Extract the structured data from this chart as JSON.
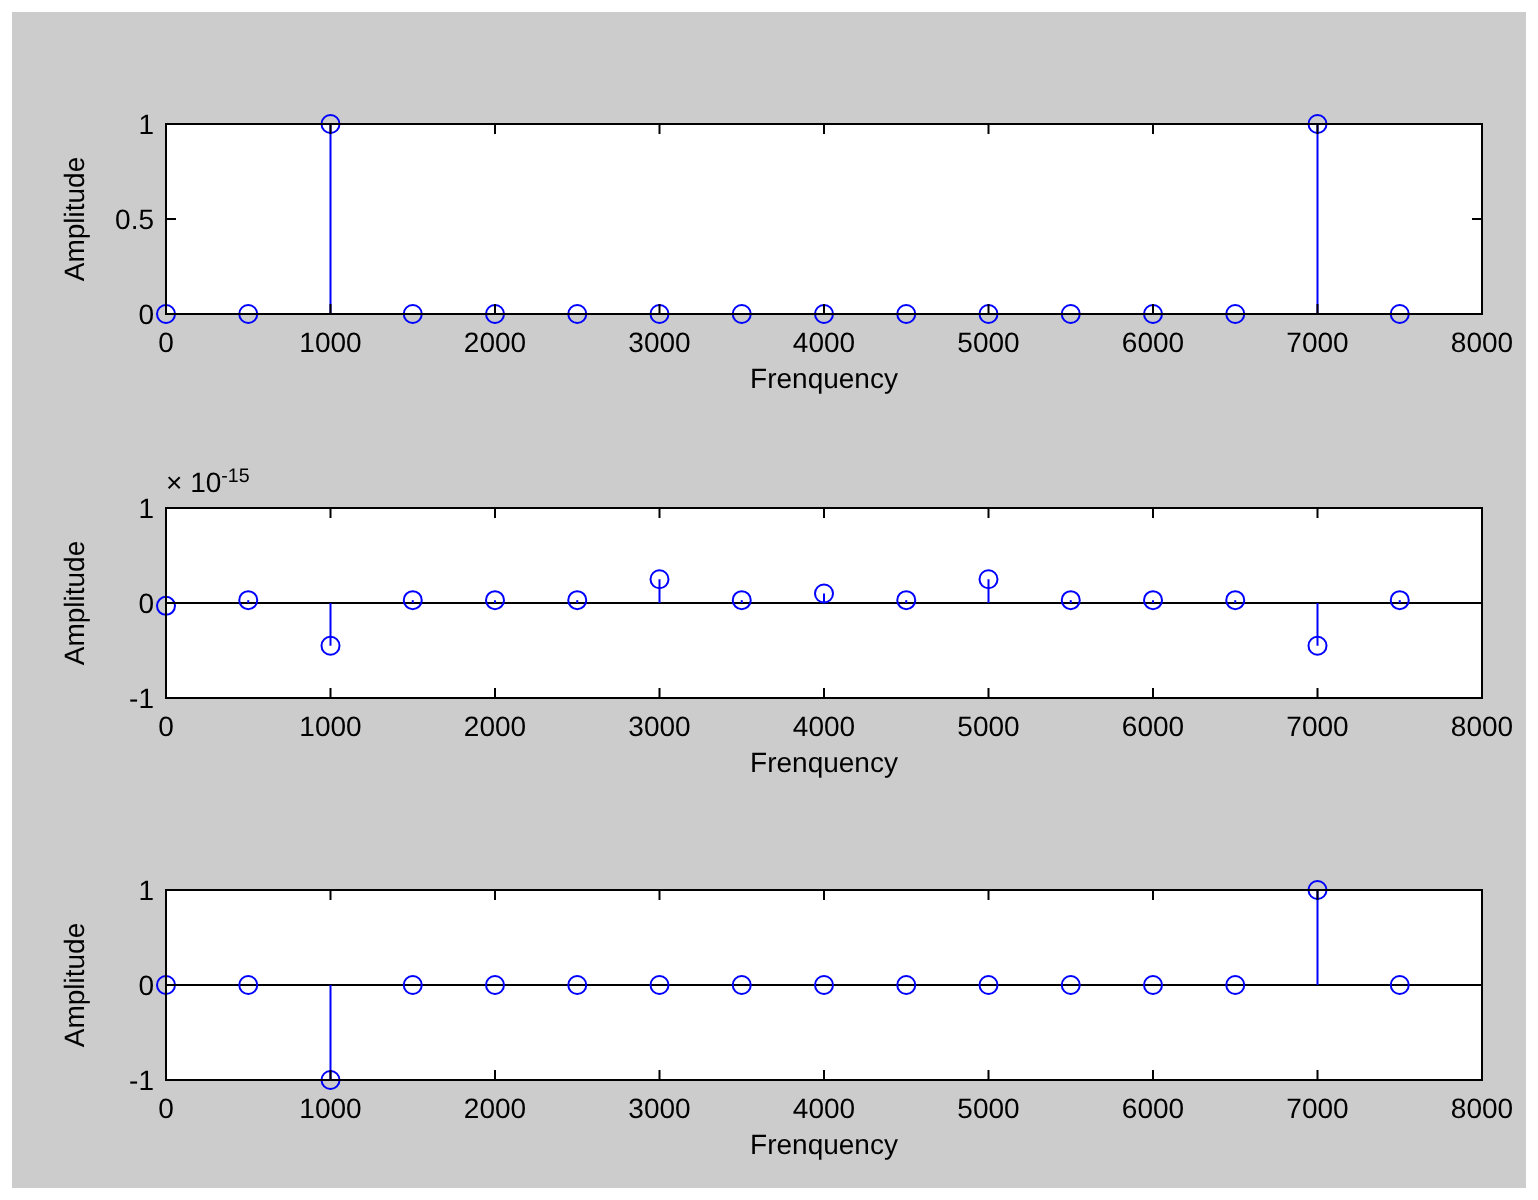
{
  "chart_data": [
    {
      "type": "lollipop",
      "x": [
        0,
        500,
        1000,
        1500,
        2000,
        2500,
        3000,
        3500,
        4000,
        4500,
        5000,
        5500,
        6000,
        6500,
        7000,
        7500
      ],
      "series": [
        {
          "color": "#0000ff",
          "values": [
            0,
            0,
            1,
            0,
            0,
            0,
            0,
            0,
            0,
            0,
            0,
            0,
            0,
            0,
            1,
            0
          ]
        }
      ],
      "xlim": [
        0,
        8000
      ],
      "xticks": [
        0,
        1000,
        2000,
        3000,
        4000,
        5000,
        6000,
        7000,
        8000
      ],
      "ylim": [
        0,
        1
      ],
      "yticks": [
        0,
        0.5,
        1
      ],
      "xlabel": "Frenquency",
      "ylabel": "Amplitude",
      "marker": "circle"
    },
    {
      "type": "lollipop",
      "x": [
        0,
        500,
        1000,
        1500,
        2000,
        2500,
        3000,
        3500,
        4000,
        4500,
        5000,
        5500,
        6000,
        6500,
        7000,
        7500
      ],
      "series": [
        {
          "color": "#0000ff",
          "values": [
            -0.03,
            0.03,
            -0.45,
            0.03,
            0.03,
            0.03,
            0.25,
            0.03,
            0.1,
            0.03,
            0.25,
            0.03,
            0.03,
            0.03,
            -0.45,
            0.03
          ]
        }
      ],
      "xlim": [
        0,
        8000
      ],
      "xticks": [
        0,
        1000,
        2000,
        3000,
        4000,
        5000,
        6000,
        7000,
        8000
      ],
      "ylim": [
        -1,
        1
      ],
      "yticks": [
        -1,
        0,
        1
      ],
      "xlabel": "Frenquency",
      "ylabel": "Amplitude",
      "marker": "circle",
      "annotations": [
        "× 10$^{-15}$"
      ]
    },
    {
      "type": "lollipop",
      "x": [
        0,
        500,
        1000,
        1500,
        2000,
        2500,
        3000,
        3500,
        4000,
        4500,
        5000,
        5500,
        6000,
        6500,
        7000,
        7500
      ],
      "series": [
        {
          "color": "#0000ff",
          "values": [
            0,
            0,
            -1,
            0,
            0,
            0,
            0,
            0,
            0,
            0,
            0,
            0,
            0,
            0,
            1,
            0
          ]
        }
      ],
      "xlim": [
        0,
        8000
      ],
      "xticks": [
        0,
        1000,
        2000,
        3000,
        4000,
        5000,
        6000,
        7000,
        8000
      ],
      "ylim": [
        -1,
        1
      ],
      "yticks": [
        -1,
        0,
        1
      ],
      "xlabel": "Frenquency",
      "ylabel": "Amplitude",
      "marker": "circle"
    }
  ]
}
